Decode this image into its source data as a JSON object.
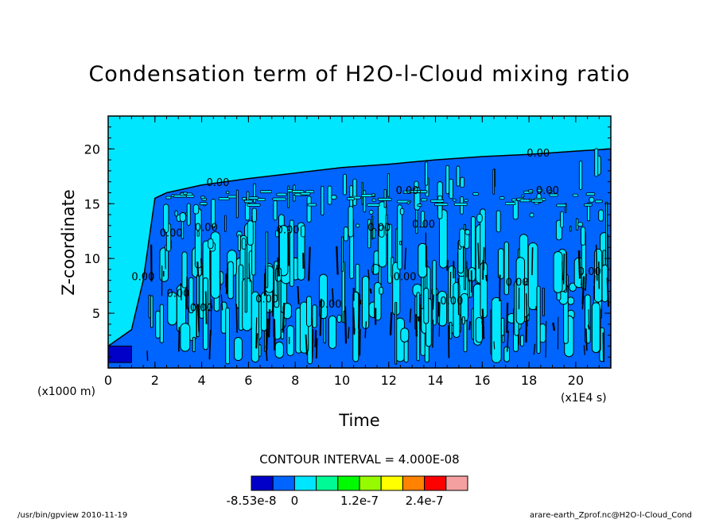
{
  "chart_data": {
    "type": "heatmap",
    "subtype": "filled-contour",
    "title": "Condensation term of H2O-l-Cloud mixing ratio",
    "xlabel": "Time",
    "ylabel": "Z-coordinate",
    "x_unit_label": "(x1E4 s)",
    "y_unit_label": "(x1000 m)",
    "xlim": [
      0,
      21.5
    ],
    "ylim": [
      0,
      23
    ],
    "x_ticks": [
      0,
      2,
      4,
      6,
      8,
      10,
      12,
      14,
      16,
      18,
      20
    ],
    "y_ticks": [
      5,
      10,
      15,
      20
    ],
    "contour_interval_text": "CONTOUR INTERVAL = 4.000E-08",
    "contour_label_text": "0.00",
    "colorbar": {
      "colors": [
        "#0000c8",
        "#0064ff",
        "#00e6ff",
        "#00fa96",
        "#00fa00",
        "#96fa00",
        "#ffff00",
        "#ff8200",
        "#ff0000",
        "#f5a0a0"
      ],
      "tick_labels": [
        "-8.53e-8",
        "0",
        "1.2e-7",
        "2.4e-7"
      ],
      "tick_positions": [
        0,
        2,
        5,
        8
      ]
    },
    "colors": {
      "background_field": "#00e6ff",
      "cloud_field": "#0064ff",
      "negative": "#0000c8",
      "contour_line": "#000000"
    },
    "cloud_top_profile": [
      {
        "t": 0.0,
        "z": 2.0
      },
      {
        "t": 1.0,
        "z": 3.5
      },
      {
        "t": 1.5,
        "z": 8.0
      },
      {
        "t": 2.0,
        "z": 15.5
      },
      {
        "t": 2.5,
        "z": 16.0
      },
      {
        "t": 4.0,
        "z": 16.7
      },
      {
        "t": 6.0,
        "z": 17.3
      },
      {
        "t": 8.0,
        "z": 17.8
      },
      {
        "t": 10.0,
        "z": 18.3
      },
      {
        "t": 12.0,
        "z": 18.6
      },
      {
        "t": 14.0,
        "z": 19.0
      },
      {
        "t": 16.0,
        "z": 19.3
      },
      {
        "t": 18.0,
        "z": 19.5
      },
      {
        "t": 20.0,
        "z": 19.8
      },
      {
        "t": 21.5,
        "z": 20.0
      }
    ],
    "contour_labels": [
      {
        "t": 17.9,
        "z": 19.3
      },
      {
        "t": 4.2,
        "z": 16.6
      },
      {
        "t": 12.3,
        "z": 15.9
      },
      {
        "t": 18.3,
        "z": 15.9
      },
      {
        "t": 2.2,
        "z": 12.0
      },
      {
        "t": 3.7,
        "z": 12.5
      },
      {
        "t": 7.2,
        "z": 12.3
      },
      {
        "t": 11.1,
        "z": 12.5
      },
      {
        "t": 13.0,
        "z": 12.8
      },
      {
        "t": 1.0,
        "z": 8.0
      },
      {
        "t": 2.5,
        "z": 6.5
      },
      {
        "t": 6.3,
        "z": 6.0
      },
      {
        "t": 12.2,
        "z": 8.0
      },
      {
        "t": 17.0,
        "z": 7.5
      },
      {
        "t": 20.1,
        "z": 8.5
      },
      {
        "t": 3.5,
        "z": 5.2
      },
      {
        "t": 9.0,
        "z": 5.5
      },
      {
        "t": 14.2,
        "z": 5.8
      }
    ]
  },
  "footer": {
    "left": "/usr/bin/gpview  2010-11-19",
    "right": "arare-earth_Zprof.nc@H2O-l-Cloud_Cond"
  }
}
